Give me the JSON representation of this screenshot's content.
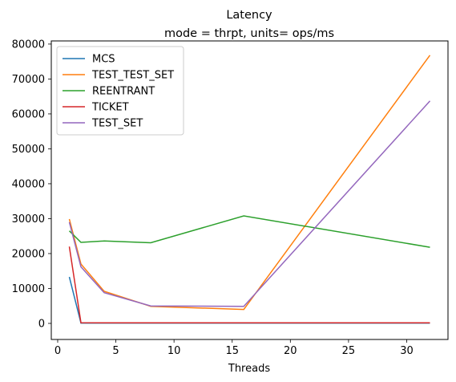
{
  "chart_data": {
    "type": "line",
    "title": "Latency",
    "subtitle": "mode = thrpt, units= ops/ms",
    "xlabel": "Threads",
    "ylabel": "",
    "xlim": [
      -0.55,
      33.55
    ],
    "ylim": [
      -4600,
      80900
    ],
    "xticks": [
      0,
      5,
      10,
      15,
      20,
      25,
      30
    ],
    "yticks": [
      0,
      10000,
      20000,
      30000,
      40000,
      50000,
      60000,
      70000,
      80000
    ],
    "grid": false,
    "legend_position": "top-left",
    "series": [
      {
        "name": "MCS",
        "color": "#1f77b4",
        "x": [
          1,
          2,
          4,
          8,
          16,
          32
        ],
        "y": [
          13300,
          100,
          100,
          100,
          100,
          100
        ]
      },
      {
        "name": "TEST_TEST_SET",
        "color": "#ff7f0e",
        "x": [
          1,
          2,
          4,
          8,
          16,
          32
        ],
        "y": [
          29900,
          17000,
          9200,
          4900,
          4000,
          76800
        ]
      },
      {
        "name": "REENTRANT",
        "color": "#2ca02c",
        "x": [
          1,
          2,
          4,
          8,
          16,
          32
        ],
        "y": [
          26500,
          23200,
          23600,
          23100,
          30800,
          21800
        ]
      },
      {
        "name": "TICKET",
        "color": "#d62728",
        "x": [
          1,
          2,
          4,
          8,
          16,
          32
        ],
        "y": [
          22000,
          200,
          150,
          150,
          150,
          150
        ]
      },
      {
        "name": "TEST_SET",
        "color": "#9467bd",
        "x": [
          1,
          2,
          4,
          8,
          16,
          32
        ],
        "y": [
          29000,
          16200,
          8800,
          5000,
          4900,
          63700
        ]
      }
    ]
  }
}
